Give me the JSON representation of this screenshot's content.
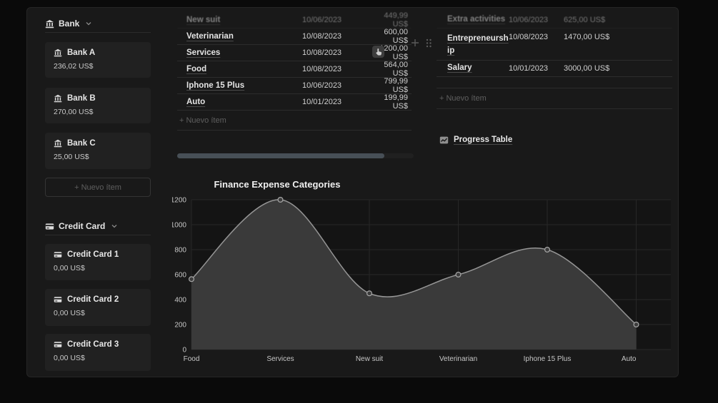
{
  "colors": {
    "page_bg": "#0a0a0a",
    "panel_bg": "#191919",
    "card_bg": "#212121",
    "divider": "#2c2c2c",
    "chart_area_fill": "#3a3a3a",
    "chart_line": "#959595",
    "scrollbar_thumb": "#474f56"
  },
  "icons": {
    "bank": "classical-building",
    "credit_card": "credit-card",
    "progress": "line-chart",
    "chevron": "chevron-down",
    "new_item_plus": "plus",
    "block_handle": "drag-dots",
    "cursor_badge": "hand-pointer"
  },
  "sidebar": {
    "bank": {
      "label": "Bank",
      "items": [
        {
          "name": "Bank A",
          "amount": "236,02 US$"
        },
        {
          "name": "Bank B",
          "amount": "270,00 US$"
        },
        {
          "name": "Bank C",
          "amount": "25,00 US$"
        }
      ],
      "new_item": "+ Nuevo ítem"
    },
    "credit": {
      "label": "Credit Card",
      "items": [
        {
          "name": "Credit Card 1",
          "amount": "0,00 US$"
        },
        {
          "name": "Credit Card 2",
          "amount": "0,00 US$"
        },
        {
          "name": "Credit Card 3",
          "amount": "0,00 US$"
        }
      ]
    }
  },
  "expenses": {
    "rows": [
      {
        "name": "New suit",
        "date": "10/06/2023",
        "amount": "449,99 US$"
      },
      {
        "name": "Veterinarian",
        "date": "10/08/2023",
        "amount": "600,00 US$"
      },
      {
        "name": "Services",
        "date": "10/08/2023",
        "amount": "1200,00 US$"
      },
      {
        "name": "Food",
        "date": "10/08/2023",
        "amount": "564,00 US$"
      },
      {
        "name": "Iphone 15 Plus",
        "date": "10/06/2023",
        "amount": "799,99 US$"
      },
      {
        "name": "Auto",
        "date": "10/01/2023",
        "amount": "199,99 US$"
      }
    ],
    "new_item": "+ Nuevo ítem"
  },
  "income": {
    "rows": [
      {
        "name": "Extra activities",
        "date": "10/06/2023",
        "amount": "625,00 US$"
      },
      {
        "name": "Entrepreneurship",
        "date": "10/08/2023",
        "amount": "1470,00 US$"
      },
      {
        "name": "Salary",
        "date": "10/01/2023",
        "amount": "3000,00 US$"
      }
    ],
    "new_item": "+ Nuevo ítem"
  },
  "progress_link_label": "Progress Table",
  "chart_data": {
    "type": "area",
    "title": "Finance Expense Categories",
    "categories": [
      "Food",
      "Services",
      "New suit",
      "Veterinarian",
      "Iphone 15 Plus",
      "Auto"
    ],
    "values": [
      564,
      1200,
      450,
      600,
      800,
      200
    ],
    "xlabel": "",
    "ylabel": "",
    "ylim": [
      0,
      1200
    ],
    "yticks": [
      0,
      200,
      400,
      600,
      800,
      1000,
      1200
    ],
    "grid": true,
    "legend": false,
    "marker": "circle"
  }
}
